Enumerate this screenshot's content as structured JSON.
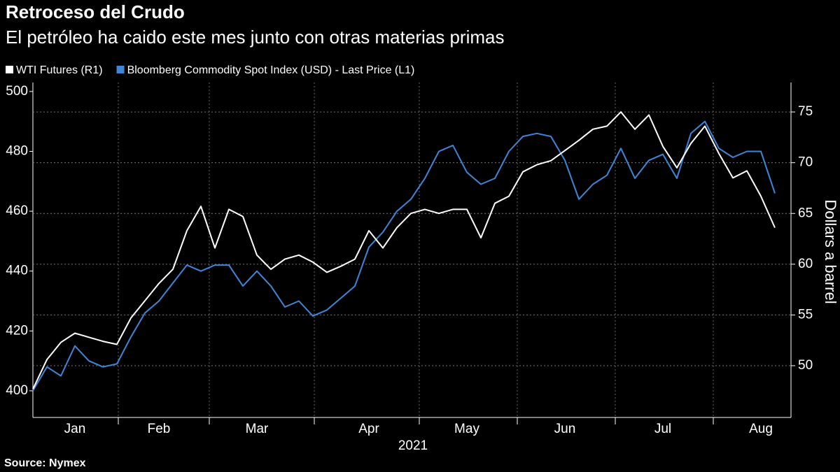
{
  "chart_data": {
    "type": "line",
    "title": "Retroceso del Crudo",
    "subtitle": "El petróleo ha caido este mes junto con otras materias primas",
    "source": "Source: Nymex",
    "x_axis_label": "2021",
    "y2_axis_label": "Dollars a barrel",
    "categories": [
      null,
      null,
      null,
      "Jan",
      null,
      null,
      null,
      null,
      null,
      "Feb",
      null,
      null,
      null,
      null,
      null,
      null,
      "Mar",
      null,
      null,
      null,
      null,
      null,
      null,
      null,
      "Apr",
      null,
      null,
      null,
      null,
      null,
      null,
      "May",
      null,
      null,
      null,
      null,
      null,
      null,
      "Jun",
      null,
      null,
      null,
      null,
      null,
      null,
      "Jul",
      null,
      null,
      null,
      null,
      null,
      null,
      "Aug",
      null
    ],
    "series": [
      {
        "name": "WTI Futures (R1)",
        "color": "#ffffff",
        "axis": "y2",
        "values": [
          47.7,
          50.6,
          52.3,
          53.2,
          52.8,
          52.4,
          52.1,
          54.7,
          56.4,
          58.1,
          59.5,
          63.3,
          65.7,
          61.6,
          65.4,
          64.7,
          60.9,
          59.5,
          60.5,
          60.9,
          60.2,
          59.2,
          59.8,
          60.5,
          63.3,
          61.6,
          63.6,
          65.0,
          65.4,
          65.0,
          65.4,
          65.4,
          62.6,
          66.0,
          66.7,
          69.1,
          69.8,
          70.2,
          71.2,
          72.2,
          73.3,
          73.6,
          75.0,
          73.3,
          74.7,
          71.6,
          69.5,
          71.9,
          73.6,
          70.9,
          68.5,
          69.2,
          66.7,
          63.6
        ]
      },
      {
        "name": "Bloomberg Commodity Spot Index (USD) - Last Price (L1)",
        "color": "#3f86d9",
        "axis": "y",
        "values": [
          400,
          408,
          405,
          415,
          410,
          408,
          409,
          418,
          426,
          430,
          436,
          442,
          440,
          442,
          442,
          435,
          440,
          435,
          428,
          430,
          425,
          427,
          431,
          435,
          448,
          453,
          460,
          464,
          471,
          480,
          482,
          473,
          469,
          471,
          480,
          485,
          486,
          485,
          477,
          464,
          469,
          472,
          481,
          471,
          477,
          479,
          471,
          486,
          490,
          481,
          478,
          480,
          480,
          466
        ]
      }
    ],
    "ylim": [
      391.1,
      503
    ],
    "yticks": [
      400,
      420,
      440,
      460,
      480,
      500
    ],
    "y2lim": [
      44.9,
      77.9
    ],
    "y2ticks": [
      50,
      55,
      60,
      65,
      70,
      75
    ],
    "grid": true
  }
}
